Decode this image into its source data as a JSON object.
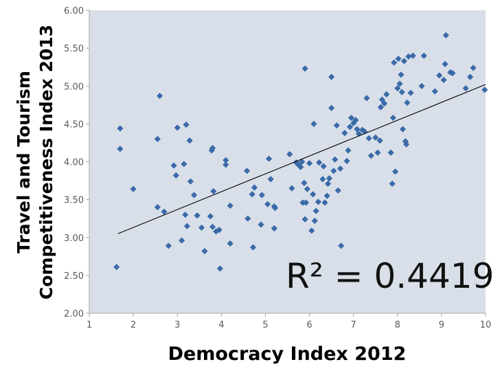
{
  "chart_data": {
    "type": "scatter",
    "xlabel": "Democracy Index 2012",
    "ylabel_line1": "Travel and Tourism",
    "ylabel_line2": "Competitiveness Index 2013",
    "xlim": [
      1,
      10
    ],
    "ylim": [
      2.0,
      6.0
    ],
    "x_ticks": [
      "1",
      "2",
      "3",
      "4",
      "5",
      "6",
      "7",
      "8",
      "9",
      "10"
    ],
    "y_ticks": [
      "2.00",
      "2.50",
      "3.00",
      "3.50",
      "4.00",
      "4.50",
      "5.00",
      "5.50",
      "6.00"
    ],
    "grid": false,
    "annotation": "R² = 0.4419",
    "colors": {
      "plot_background": "#d9dfe9",
      "marker": "#3a6aa8",
      "trendline": "#000000",
      "axis": "#a6a6a6"
    },
    "trendline": {
      "x": [
        1.65,
        10.0
      ],
      "y": [
        3.05,
        5.02
      ]
    },
    "points": [
      [
        1.62,
        2.61
      ],
      [
        1.7,
        4.44
      ],
      [
        1.7,
        4.17
      ],
      [
        2.0,
        3.64
      ],
      [
        2.55,
        4.3
      ],
      [
        2.55,
        3.4
      ],
      [
        2.6,
        4.87
      ],
      [
        2.7,
        3.34
      ],
      [
        2.8,
        2.89
      ],
      [
        2.92,
        3.95
      ],
      [
        2.97,
        3.82
      ],
      [
        3.0,
        4.45
      ],
      [
        3.1,
        2.96
      ],
      [
        3.15,
        3.97
      ],
      [
        3.18,
        3.3
      ],
      [
        3.2,
        4.49
      ],
      [
        3.22,
        3.15
      ],
      [
        3.28,
        4.28
      ],
      [
        3.3,
        3.74
      ],
      [
        3.38,
        3.56
      ],
      [
        3.45,
        3.29
      ],
      [
        3.55,
        3.13
      ],
      [
        3.62,
        2.82
      ],
      [
        3.75,
        3.28
      ],
      [
        3.78,
        4.15
      ],
      [
        3.8,
        4.18
      ],
      [
        3.8,
        3.14
      ],
      [
        3.82,
        3.61
      ],
      [
        3.88,
        3.08
      ],
      [
        3.95,
        3.1
      ],
      [
        3.97,
        2.59
      ],
      [
        4.1,
        4.02
      ],
      [
        4.1,
        3.96
      ],
      [
        4.2,
        3.42
      ],
      [
        4.2,
        2.92
      ],
      [
        4.58,
        3.88
      ],
      [
        4.6,
        3.25
      ],
      [
        4.7,
        3.57
      ],
      [
        4.72,
        2.87
      ],
      [
        4.75,
        3.66
      ],
      [
        4.9,
        3.17
      ],
      [
        4.92,
        3.56
      ],
      [
        5.05,
        3.44
      ],
      [
        5.08,
        4.04
      ],
      [
        5.12,
        3.77
      ],
      [
        5.2,
        3.12
      ],
      [
        5.2,
        3.41
      ],
      [
        5.22,
        3.39
      ],
      [
        5.55,
        4.1
      ],
      [
        5.6,
        3.65
      ],
      [
        5.7,
        3.99
      ],
      [
        5.75,
        3.96
      ],
      [
        5.8,
        3.93
      ],
      [
        5.83,
        4.0
      ],
      [
        5.85,
        3.46
      ],
      [
        5.88,
        3.72
      ],
      [
        5.9,
        5.23
      ],
      [
        5.9,
        3.24
      ],
      [
        5.92,
        3.46
      ],
      [
        5.95,
        3.64
      ],
      [
        6.0,
        3.98
      ],
      [
        6.05,
        3.09
      ],
      [
        6.08,
        3.57
      ],
      [
        6.1,
        4.5
      ],
      [
        6.12,
        3.22
      ],
      [
        6.15,
        3.35
      ],
      [
        6.2,
        3.47
      ],
      [
        6.22,
        3.99
      ],
      [
        6.3,
        3.77
      ],
      [
        6.32,
        3.94
      ],
      [
        6.35,
        3.46
      ],
      [
        6.4,
        3.55
      ],
      [
        6.42,
        3.71
      ],
      [
        6.45,
        3.78
      ],
      [
        6.5,
        5.12
      ],
      [
        6.5,
        4.71
      ],
      [
        6.55,
        3.88
      ],
      [
        6.58,
        4.03
      ],
      [
        6.62,
        4.48
      ],
      [
        6.65,
        3.62
      ],
      [
        6.7,
        3.91
      ],
      [
        6.72,
        2.89
      ],
      [
        6.8,
        4.38
      ],
      [
        6.85,
        4.01
      ],
      [
        6.88,
        4.15
      ],
      [
        6.92,
        4.46
      ],
      [
        6.95,
        4.58
      ],
      [
        7.0,
        4.51
      ],
      [
        7.05,
        4.55
      ],
      [
        7.08,
        4.43
      ],
      [
        7.12,
        4.37
      ],
      [
        7.2,
        4.42
      ],
      [
        7.25,
        4.4
      ],
      [
        7.3,
        4.84
      ],
      [
        7.35,
        4.31
      ],
      [
        7.4,
        4.08
      ],
      [
        7.5,
        4.32
      ],
      [
        7.55,
        4.12
      ],
      [
        7.6,
        4.28
      ],
      [
        7.62,
        4.72
      ],
      [
        7.65,
        4.82
      ],
      [
        7.7,
        4.77
      ],
      [
        7.75,
        4.89
      ],
      [
        7.85,
        4.12
      ],
      [
        7.88,
        3.71
      ],
      [
        7.9,
        4.58
      ],
      [
        7.92,
        5.31
      ],
      [
        7.95,
        3.87
      ],
      [
        8.0,
        4.97
      ],
      [
        8.02,
        5.36
      ],
      [
        8.05,
        5.03
      ],
      [
        8.08,
        5.15
      ],
      [
        8.1,
        4.92
      ],
      [
        8.12,
        4.43
      ],
      [
        8.15,
        5.33
      ],
      [
        8.18,
        4.27
      ],
      [
        8.2,
        4.23
      ],
      [
        8.22,
        4.78
      ],
      [
        8.25,
        5.39
      ],
      [
        8.3,
        4.91
      ],
      [
        8.35,
        5.4
      ],
      [
        8.55,
        5.0
      ],
      [
        8.6,
        5.4
      ],
      [
        8.85,
        4.93
      ],
      [
        8.95,
        5.14
      ],
      [
        9.05,
        5.08
      ],
      [
        9.08,
        5.29
      ],
      [
        9.1,
        5.67
      ],
      [
        9.2,
        5.18
      ],
      [
        9.25,
        5.17
      ],
      [
        9.55,
        4.97
      ],
      [
        9.65,
        5.12
      ],
      [
        9.72,
        5.24
      ],
      [
        9.98,
        4.95
      ]
    ]
  }
}
